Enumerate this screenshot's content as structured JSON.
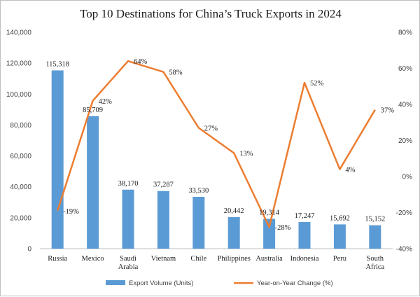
{
  "chart_data": {
    "type": "bar",
    "title": "Top 10 Destinations for China’s Truck Exports in 2024",
    "categories": [
      [
        "Russia"
      ],
      [
        "Mexico"
      ],
      [
        "Saudi",
        "Arabia"
      ],
      [
        "Vietnam"
      ],
      [
        "Chile"
      ],
      [
        "Philippines"
      ],
      [
        "Australia"
      ],
      [
        "Indonesia"
      ],
      [
        "Peru"
      ],
      [
        "South",
        "Africa"
      ]
    ],
    "series": [
      {
        "name": "Export Volume (Units)",
        "type": "bar",
        "axis": "left",
        "color": "#5b9bd5",
        "values": [
          115318,
          85709,
          38170,
          37287,
          33530,
          20442,
          19314,
          17247,
          15692,
          15152
        ],
        "labels": [
          "115,318",
          "85,709",
          "38,170",
          "37,287",
          "33,530",
          "20,442",
          "19,314",
          "17,247",
          "15,692",
          "15,152"
        ]
      },
      {
        "name": "Year-on-Year Change (%)",
        "type": "line",
        "axis": "right",
        "color": "#ed7d31",
        "values": [
          -19,
          42,
          64,
          58,
          27,
          13,
          -28,
          52,
          4,
          37
        ],
        "labels": [
          "-19%",
          "42%",
          "64%",
          "58%",
          "27%",
          "13%",
          "-28%",
          "52%",
          "4%",
          "37%"
        ]
      }
    ],
    "left_axis": {
      "ylim": [
        0,
        140000
      ],
      "ticks": [
        "0",
        "20,000",
        "40,000",
        "60,000",
        "80,000",
        "100,000",
        "120,000",
        "140,000"
      ]
    },
    "right_axis": {
      "ylim": [
        -40,
        80
      ],
      "ticks": [
        "-40%",
        "-20%",
        "0%",
        "20%",
        "40%",
        "60%",
        "80%"
      ]
    },
    "grid": false,
    "legend_position": "bottom"
  }
}
